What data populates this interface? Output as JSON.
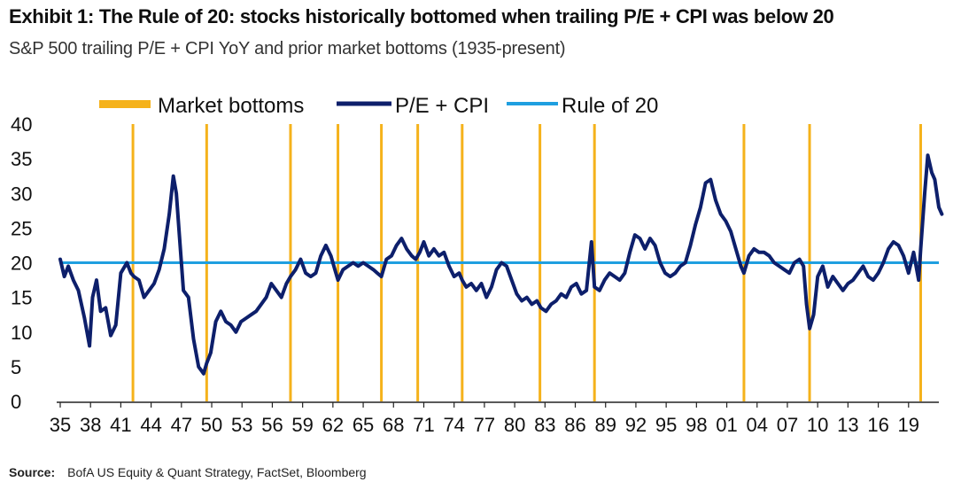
{
  "header": {
    "title": "Exhibit 1: The Rule of 20: stocks historically bottomed when trailing P/E + CPI was below 20",
    "subtitle": "S&P 500 trailing P/E + CPI YoY and prior market bottoms (1935-present)"
  },
  "footer": {
    "source_label": "Source:",
    "source_text": "BofA US Equity & Quant Strategy, FactSet, Bloomberg"
  },
  "colors": {
    "bottoms": "#f5b21b",
    "pe_cpi": "#0d1f6b",
    "rule": "#1f9fe0"
  },
  "chart_data": {
    "type": "line",
    "ylim": [
      0,
      40
    ],
    "yticks": [
      0,
      5,
      10,
      15,
      20,
      25,
      30,
      35,
      40
    ],
    "xlim": [
      1935,
      2022
    ],
    "xticks": [
      1935,
      1938,
      1941,
      1944,
      1947,
      1950,
      1953,
      1956,
      1959,
      1962,
      1965,
      1968,
      1971,
      1974,
      1977,
      1980,
      1983,
      1986,
      1989,
      1992,
      1995,
      1998,
      2001,
      2004,
      2007,
      2010,
      2013,
      2016,
      2019
    ],
    "xtick_labels": [
      "35",
      "38",
      "41",
      "44",
      "47",
      "50",
      "53",
      "56",
      "59",
      "62",
      "65",
      "68",
      "71",
      "74",
      "77",
      "80",
      "83",
      "86",
      "89",
      "92",
      "95",
      "98",
      "01",
      "04",
      "07",
      "10",
      "13",
      "16",
      "19"
    ],
    "legend": [
      "Market bottoms",
      "P/E + CPI",
      "Rule of 20"
    ],
    "legend_position": "top",
    "rule_of_20": 20,
    "market_bottoms": [
      1942.2,
      1949.5,
      1957.8,
      1962.5,
      1966.8,
      1970.4,
      1974.8,
      1982.5,
      1987.9,
      2002.7,
      2009.2,
      2020.2
    ],
    "series": [
      {
        "name": "P/E + CPI",
        "x": [
          1935.0,
          1935.4,
          1935.8,
          1936.3,
          1936.8,
          1937.4,
          1937.9,
          1938.2,
          1938.6,
          1939.0,
          1939.5,
          1940.0,
          1940.5,
          1941.0,
          1941.6,
          1942.0,
          1942.3,
          1942.8,
          1943.3,
          1943.8,
          1944.3,
          1944.8,
          1945.3,
          1945.8,
          1946.2,
          1946.5,
          1946.8,
          1947.2,
          1947.7,
          1948.2,
          1948.7,
          1949.2,
          1949.5,
          1949.9,
          1950.4,
          1950.9,
          1951.4,
          1951.9,
          1952.4,
          1952.9,
          1953.4,
          1953.9,
          1954.4,
          1954.9,
          1955.4,
          1955.9,
          1956.4,
          1956.9,
          1957.4,
          1957.8,
          1958.3,
          1958.8,
          1959.3,
          1959.8,
          1960.3,
          1960.8,
          1961.3,
          1961.8,
          1962.2,
          1962.5,
          1963.0,
          1963.5,
          1964.0,
          1964.5,
          1965.0,
          1965.5,
          1966.0,
          1966.4,
          1966.8,
          1967.3,
          1967.8,
          1968.3,
          1968.8,
          1969.3,
          1969.8,
          1970.2,
          1970.6,
          1971.0,
          1971.5,
          1972.0,
          1972.5,
          1973.0,
          1973.5,
          1974.0,
          1974.5,
          1974.8,
          1975.2,
          1975.7,
          1976.2,
          1976.7,
          1977.2,
          1977.7,
          1978.2,
          1978.7,
          1979.2,
          1979.7,
          1980.2,
          1980.7,
          1981.2,
          1981.7,
          1982.2,
          1982.6,
          1983.1,
          1983.6,
          1984.1,
          1984.6,
          1985.1,
          1985.6,
          1986.1,
          1986.6,
          1987.1,
          1987.6,
          1987.9,
          1988.4,
          1988.9,
          1989.4,
          1989.9,
          1990.4,
          1990.9,
          1991.4,
          1991.9,
          1992.4,
          1992.9,
          1993.4,
          1993.9,
          1994.4,
          1994.9,
          1995.4,
          1995.9,
          1996.4,
          1996.9,
          1997.4,
          1997.9,
          1998.4,
          1998.9,
          1999.4,
          1999.9,
          2000.4,
          2000.9,
          2001.4,
          2001.9,
          2002.4,
          2002.7,
          2003.2,
          2003.7,
          2004.2,
          2004.7,
          2005.2,
          2005.7,
          2006.2,
          2006.7,
          2007.2,
          2007.7,
          2008.2,
          2008.6,
          2008.9,
          2009.2,
          2009.6,
          2010.0,
          2010.5,
          2011.0,
          2011.5,
          2012.0,
          2012.5,
          2013.0,
          2013.5,
          2014.0,
          2014.5,
          2015.0,
          2015.5,
          2016.0,
          2016.5,
          2017.0,
          2017.5,
          2018.0,
          2018.5,
          2019.0,
          2019.5,
          2020.0,
          2020.2,
          2020.6,
          2020.9,
          2021.3,
          2021.6,
          2022.0,
          2022.3
        ],
        "values": [
          20.5,
          18.0,
          19.5,
          17.5,
          16.0,
          12.0,
          8.0,
          15.0,
          17.5,
          13.0,
          13.5,
          9.5,
          11.0,
          18.5,
          20.0,
          18.5,
          18.0,
          17.5,
          15.0,
          16.0,
          17.0,
          19.0,
          22.0,
          27.0,
          32.5,
          30.0,
          24.0,
          16.0,
          15.0,
          9.0,
          5.0,
          4.0,
          5.5,
          7.0,
          11.5,
          13.0,
          11.5,
          11.0,
          10.0,
          11.5,
          12.0,
          12.5,
          13.0,
          14.0,
          15.0,
          17.0,
          16.0,
          15.0,
          17.0,
          18.0,
          19.0,
          20.5,
          18.5,
          18.0,
          18.5,
          21.0,
          22.5,
          21.0,
          19.0,
          17.5,
          19.0,
          19.5,
          20.0,
          19.5,
          20.0,
          19.5,
          19.0,
          18.5,
          18.0,
          20.5,
          21.0,
          22.5,
          23.5,
          22.0,
          21.0,
          20.5,
          21.5,
          23.0,
          21.0,
          22.0,
          21.0,
          21.5,
          19.5,
          18.0,
          18.5,
          17.5,
          16.5,
          17.0,
          16.0,
          17.0,
          15.0,
          16.5,
          19.0,
          20.0,
          19.5,
          17.5,
          15.5,
          14.5,
          15.0,
          14.0,
          14.5,
          13.5,
          13.0,
          14.0,
          14.5,
          15.5,
          15.0,
          16.5,
          17.0,
          15.5,
          16.0,
          23.0,
          16.5,
          16.0,
          17.5,
          18.5,
          18.0,
          17.5,
          18.5,
          21.5,
          24.0,
          23.5,
          22.0,
          23.5,
          22.5,
          20.0,
          18.5,
          18.0,
          18.5,
          19.5,
          20.0,
          22.5,
          25.5,
          28.0,
          31.5,
          32.0,
          29.0,
          27.0,
          26.0,
          24.5,
          22.0,
          19.5,
          18.5,
          21.0,
          22.0,
          21.5,
          21.5,
          21.0,
          20.0,
          19.5,
          19.0,
          18.5,
          20.0,
          20.5,
          19.5,
          14.0,
          10.5,
          12.5,
          18.0,
          19.5,
          16.5,
          18.0,
          17.0,
          16.0,
          17.0,
          17.5,
          18.5,
          19.5,
          18.0,
          17.5,
          18.5,
          20.0,
          22.0,
          23.0,
          22.5,
          21.0,
          18.5,
          21.5,
          17.5,
          22.0,
          30.0,
          35.5,
          33.0,
          32.0,
          28.0,
          27.0
        ]
      }
    ]
  }
}
